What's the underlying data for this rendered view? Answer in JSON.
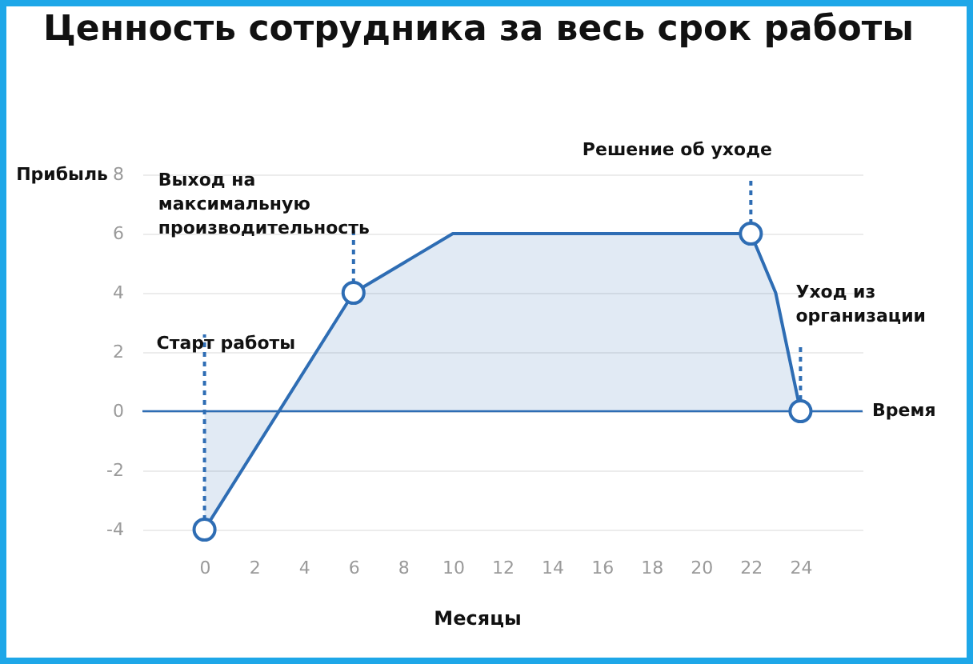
{
  "chart_data": {
    "type": "area",
    "title": "Ценность сотрудника за весь срок работы",
    "xlabel": "Месяцы",
    "ylabel": "Прибыль",
    "xlim": [
      -2.5,
      26.5
    ],
    "ylim": [
      -4,
      8
    ],
    "xticks": [
      0,
      2,
      4,
      6,
      8,
      10,
      12,
      14,
      16,
      18,
      20,
      22,
      24
    ],
    "yticks": [
      -4,
      -2,
      0,
      2,
      4,
      6,
      8
    ],
    "grid": "y",
    "series": [
      {
        "color": "#2e6db4",
        "x": [
          0,
          6,
          10,
          22,
          23,
          24
        ],
        "values": [
          -4,
          4,
          6,
          6,
          4,
          0
        ]
      },
      {
        "type": "scatter",
        "color": "#2e6db4",
        "marker": "circle",
        "x": [
          0,
          6,
          22,
          24
        ],
        "values": [
          -4,
          4,
          6,
          0
        ]
      }
    ],
    "ref_lines": [
      {
        "axis": "y",
        "value": 0,
        "label": "Время",
        "color": "#2e6db4"
      }
    ],
    "annotations": [
      {
        "text": "Старт работы",
        "x": 0,
        "y": -4
      },
      {
        "text": "Выход на\nмаксимальную\nпроизводительность",
        "x": 6,
        "y": 4
      },
      {
        "text": "Решение об уходе",
        "x": 22,
        "y": 6
      },
      {
        "text": "Уход из\nорганизации",
        "x": 24,
        "y": 0
      }
    ]
  }
}
